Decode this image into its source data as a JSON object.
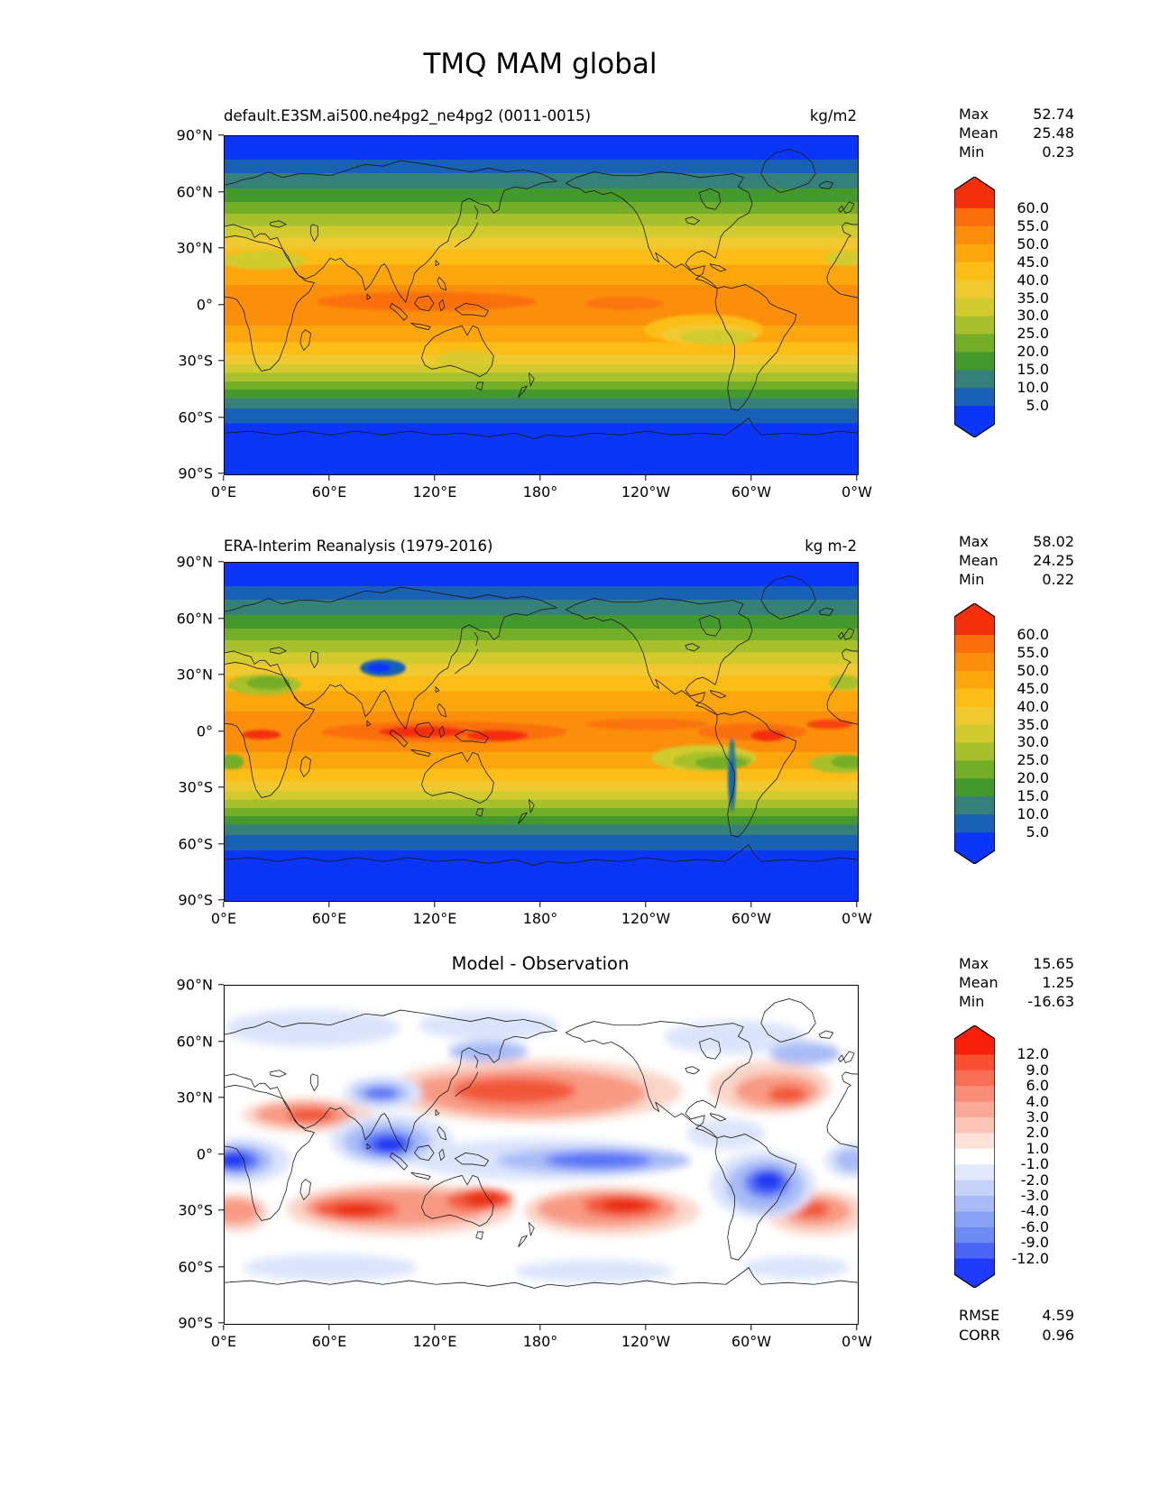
{
  "figure": {
    "title": "TMQ MAM global",
    "background": "#ffffff"
  },
  "panels": [
    {
      "id": "model",
      "title": "default.E3SM.ai500.ne4pg2_ne4pg2 (0011-0015)",
      "units": "kg/m2",
      "stats": {
        "rows": [
          {
            "label": "Max",
            "value": "52.74"
          },
          {
            "label": "Mean",
            "value": "25.48"
          },
          {
            "label": "Min",
            "value": "0.23"
          }
        ]
      },
      "yticks": [
        "90°N",
        "60°N",
        "30°N",
        "0°",
        "30°S",
        "60°S",
        "90°S"
      ],
      "xticks": [
        "0°E",
        "60°E",
        "120°E",
        "180°",
        "120°W",
        "60°W",
        "0°W"
      ],
      "colorbar": {
        "ticks": [
          "60.0",
          "55.0",
          "50.0",
          "45.0",
          "40.0",
          "35.0",
          "30.0",
          "25.0",
          "20.0",
          "15.0",
          "10.0",
          "5.0"
        ],
        "colors": [
          "#f42f0c",
          "#fa6f0c",
          "#fb8f0b",
          "#fca60d",
          "#fcbd17",
          "#f0c930",
          "#d2cb2d",
          "#a8c02b",
          "#74ad27",
          "#43992e",
          "#35807a",
          "#1961b4",
          "#0b35f7"
        ]
      }
    },
    {
      "id": "obs",
      "title": "ERA-Interim Reanalysis (1979-2016)",
      "units": "kg m-2",
      "stats": {
        "rows": [
          {
            "label": "Max",
            "value": "58.02"
          },
          {
            "label": "Mean",
            "value": "24.25"
          },
          {
            "label": "Min",
            "value": "0.22"
          }
        ]
      },
      "yticks": [
        "90°N",
        "60°N",
        "30°N",
        "0°",
        "30°S",
        "60°S",
        "90°S"
      ],
      "xticks": [
        "0°E",
        "60°E",
        "120°E",
        "180°",
        "120°W",
        "60°W",
        "0°W"
      ],
      "colorbar": {
        "ticks": [
          "60.0",
          "55.0",
          "50.0",
          "45.0",
          "40.0",
          "35.0",
          "30.0",
          "25.0",
          "20.0",
          "15.0",
          "10.0",
          "5.0"
        ],
        "colors": [
          "#f42f0c",
          "#fa6f0c",
          "#fb8f0b",
          "#fca60d",
          "#fcbd17",
          "#f0c930",
          "#d2cb2d",
          "#a8c02b",
          "#74ad27",
          "#43992e",
          "#35807a",
          "#1961b4",
          "#0b35f7"
        ]
      }
    },
    {
      "id": "diff",
      "title": "Model - Observation",
      "units": "",
      "stats": {
        "rows": [
          {
            "label": "Max",
            "value": "15.65"
          },
          {
            "label": "Mean",
            "value": "1.25"
          },
          {
            "label": "Min",
            "value": "-16.63"
          }
        ]
      },
      "metrics": {
        "rows": [
          {
            "label": "RMSE",
            "value": "4.59"
          },
          {
            "label": "CORR",
            "value": "0.96"
          }
        ]
      },
      "yticks": [
        "90°N",
        "60°N",
        "30°N",
        "0°",
        "30°S",
        "60°S",
        "90°S"
      ],
      "xticks": [
        "0°E",
        "60°E",
        "120°E",
        "180°",
        "120°W",
        "60°W",
        "0°W"
      ],
      "colorbar": {
        "ticks": [
          "12.0",
          "9.0",
          "6.0",
          "4.0",
          "3.0",
          "2.0",
          "1.0",
          "-1.0",
          "-2.0",
          "-3.0",
          "-4.0",
          "-6.0",
          "-9.0",
          "-12.0"
        ],
        "colors": [
          "#f8200a",
          "#fa4f33",
          "#f96f55",
          "#f98d78",
          "#fba998",
          "#fcc5b8",
          "#fde2da",
          "#ffffff",
          "#e2e9fc",
          "#c5d2fa",
          "#a8bbf6",
          "#8aa2f3",
          "#6e8af4",
          "#4b66f6",
          "#1e3bfb"
        ]
      }
    }
  ],
  "chart_data": [
    {
      "type": "filled_contour_map",
      "variable": "TMQ",
      "season": "MAM",
      "region": "global",
      "title": "default.E3SM.ai500.ne4pg2_ne4pg2 (0011-0015)",
      "units": "kg/m2",
      "stats": {
        "max": 52.74,
        "mean": 25.48,
        "min": 0.23
      },
      "contour_levels": [
        5,
        10,
        15,
        20,
        25,
        30,
        35,
        40,
        45,
        50,
        55,
        60
      ],
      "colorbar_extend": "both",
      "colormap_hex_top_to_bottom": [
        "#f42f0c",
        "#fa6f0c",
        "#fb8f0b",
        "#fca60d",
        "#fcbd17",
        "#f0c930",
        "#d2cb2d",
        "#a8c02b",
        "#74ad27",
        "#43992e",
        "#35807a",
        "#1961b4",
        "#0b35f7"
      ],
      "lat_ticks": [
        "90°N",
        "60°N",
        "30°N",
        "0°",
        "30°S",
        "60°S",
        "90°S"
      ],
      "lon_ticks": [
        "0°E",
        "60°E",
        "120°E",
        "180°",
        "120°W",
        "60°W",
        "0°W"
      ],
      "lat_range": [
        -90,
        90
      ],
      "lon_range": [
        0,
        360
      ],
      "pattern_summary": "zonal bands: ~5 kg/m2 at poles rising to 45-53 kg/m2 in deep tropics, maxima over Indo-Pacific warm pool"
    },
    {
      "type": "filled_contour_map",
      "variable": "TMQ",
      "season": "MAM",
      "region": "global",
      "title": "ERA-Interim Reanalysis (1979-2016)",
      "units": "kg m-2",
      "stats": {
        "max": 58.02,
        "mean": 24.25,
        "min": 0.22
      },
      "contour_levels": [
        5,
        10,
        15,
        20,
        25,
        30,
        35,
        40,
        45,
        50,
        55,
        60
      ],
      "colorbar_extend": "both",
      "colormap_hex_top_to_bottom": [
        "#f42f0c",
        "#fa6f0c",
        "#fb8f0b",
        "#fca60d",
        "#fcbd17",
        "#f0c930",
        "#d2cb2d",
        "#a8c02b",
        "#74ad27",
        "#43992e",
        "#35807a",
        "#1961b4",
        "#0b35f7"
      ],
      "lat_ticks": [
        "90°N",
        "60°N",
        "30°N",
        "0°",
        "30°S",
        "60°S",
        "90°S"
      ],
      "lon_ticks": [
        "0°E",
        "60°E",
        "120°E",
        "180°",
        "120°W",
        "60°W",
        "0°W"
      ],
      "lat_range": [
        -90,
        90
      ],
      "lon_range": [
        0,
        360
      ],
      "pattern_summary": "zonal bands with >55 kg m-2 cores along equatorial west Pacific, Amazon and equatorial Africa; dry minimum over Tibetan Plateau and poles"
    },
    {
      "type": "filled_contour_map",
      "variable": "TMQ difference",
      "season": "MAM",
      "region": "global",
      "title": "Model - Observation",
      "stats": {
        "max": 15.65,
        "mean": 1.25,
        "min": -16.63,
        "rmse": 4.59,
        "corr": 0.96
      },
      "contour_levels": [
        -12,
        -9,
        -6,
        -4,
        -3,
        -2,
        -1,
        1,
        2,
        3,
        4,
        6,
        9,
        12
      ],
      "colorbar_extend": "both",
      "colormap_hex_top_to_bottom": [
        "#f8200a",
        "#fa4f33",
        "#f96f55",
        "#f98d78",
        "#fba998",
        "#fcc5b8",
        "#fde2da",
        "#ffffff",
        "#e2e9fc",
        "#c5d2fa",
        "#a8bbf6",
        "#8aa2f3",
        "#6e8af4",
        "#4b66f6",
        "#1e3bfb"
      ],
      "lat_ticks": [
        "90°N",
        "60°N",
        "30°N",
        "0°",
        "30°S",
        "60°S",
        "90°S"
      ],
      "lon_ticks": [
        "0°E",
        "60°E",
        "120°E",
        "180°",
        "120°W",
        "60°W",
        "0°W"
      ],
      "lat_range": [
        -90,
        90
      ],
      "lon_range": [
        0,
        360
      ],
      "pattern_summary": "wet bias (red) over N Pacific ~30N, subtropical S Indian/S Pacific/S Atlantic ~20-30S and Arabia; dry bias (blue) over equatorial Africa, Bay of Bengal/Maritime Continent, central equatorial Pacific and tropical South America"
    }
  ]
}
